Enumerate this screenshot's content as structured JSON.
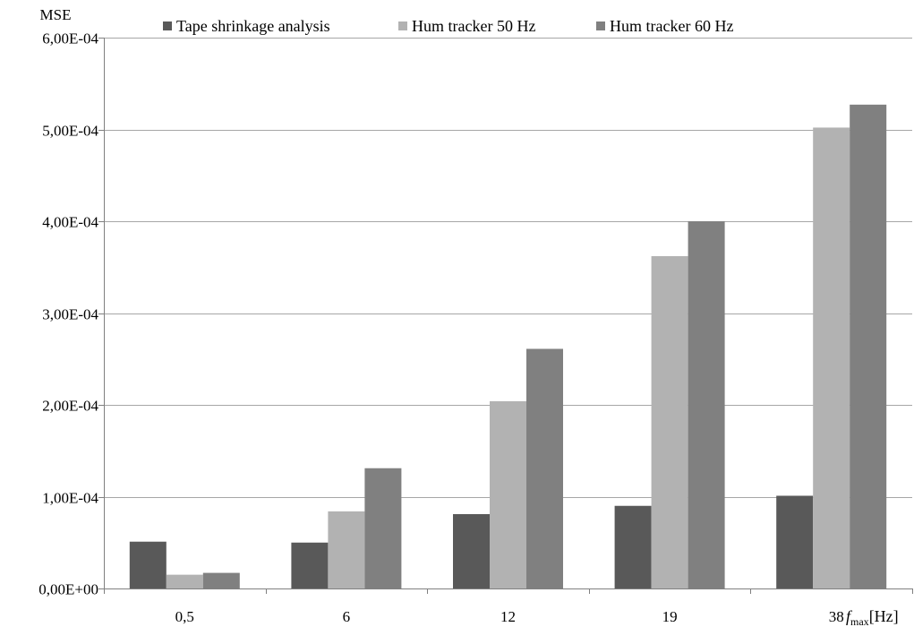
{
  "chart_data": {
    "type": "bar",
    "categories": [
      "0,5",
      "6",
      "12",
      "19",
      "38"
    ],
    "series": [
      {
        "name": "Tape shrinkage analysis",
        "color": "#595959",
        "values": [
          5.1e-05,
          5e-05,
          8.1e-05,
          9e-05,
          0.000101
        ]
      },
      {
        "name": "Hum tracker 50 Hz",
        "color": "#b2b2b2",
        "values": [
          1.5e-05,
          8.4e-05,
          0.000204,
          0.000362,
          0.000502
        ]
      },
      {
        "name": "Hum tracker 60 Hz",
        "color": "#808080",
        "values": [
          1.7e-05,
          0.000131,
          0.000261,
          0.0004,
          0.000527
        ]
      }
    ],
    "ylabel": "MSE",
    "xlabel_var": "f",
    "xlabel_sub": "max",
    "xlabel_unit": "[Hz]",
    "ylim": [
      0,
      0.0006
    ],
    "yticks": [
      0,
      0.0001,
      0.0002,
      0.0003,
      0.0004,
      0.0005,
      0.0006
    ],
    "ytick_labels": [
      "0,00E+00",
      "1,00E-04",
      "2,00E-04",
      "3,00E-04",
      "4,00E-04",
      "5,00E-04",
      "6,00E-04"
    ],
    "grid": true,
    "legend_position": "top"
  }
}
